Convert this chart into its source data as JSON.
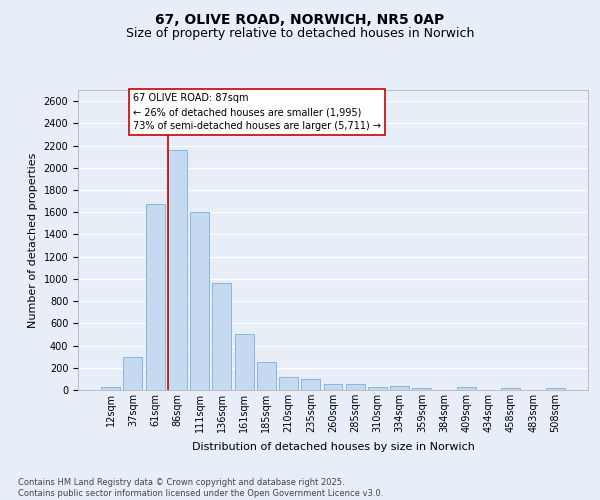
{
  "title_line1": "67, OLIVE ROAD, NORWICH, NR5 0AP",
  "title_line2": "Size of property relative to detached houses in Norwich",
  "xlabel": "Distribution of detached houses by size in Norwich",
  "ylabel": "Number of detached properties",
  "categories": [
    "12sqm",
    "37sqm",
    "61sqm",
    "86sqm",
    "111sqm",
    "136sqm",
    "161sqm",
    "185sqm",
    "210sqm",
    "235sqm",
    "260sqm",
    "285sqm",
    "310sqm",
    "334sqm",
    "359sqm",
    "384sqm",
    "409sqm",
    "434sqm",
    "458sqm",
    "483sqm",
    "508sqm"
  ],
  "values": [
    25,
    300,
    1675,
    2160,
    1600,
    965,
    505,
    248,
    120,
    100,
    55,
    55,
    30,
    35,
    15,
    0,
    30,
    0,
    15,
    0,
    20
  ],
  "bar_color": "#c5d9f1",
  "bar_edge_color": "#7bafd4",
  "background_color": "#e8eef8",
  "grid_color": "#ffffff",
  "vline_color": "#cc0000",
  "annotation_text": "67 OLIVE ROAD: 87sqm\n← 26% of detached houses are smaller (1,995)\n73% of semi-detached houses are larger (5,711) →",
  "annotation_box_edgecolor": "#cc0000",
  "ylim": [
    0,
    2700
  ],
  "yticks": [
    0,
    200,
    400,
    600,
    800,
    1000,
    1200,
    1400,
    1600,
    1800,
    2000,
    2200,
    2400,
    2600
  ],
  "title_fontsize": 10,
  "subtitle_fontsize": 9,
  "axis_label_fontsize": 8,
  "tick_fontsize": 7,
  "annotation_fontsize": 7,
  "footer_fontsize": 6,
  "footer_text": "Contains HM Land Registry data © Crown copyright and database right 2025.\nContains public sector information licensed under the Open Government Licence v3.0."
}
